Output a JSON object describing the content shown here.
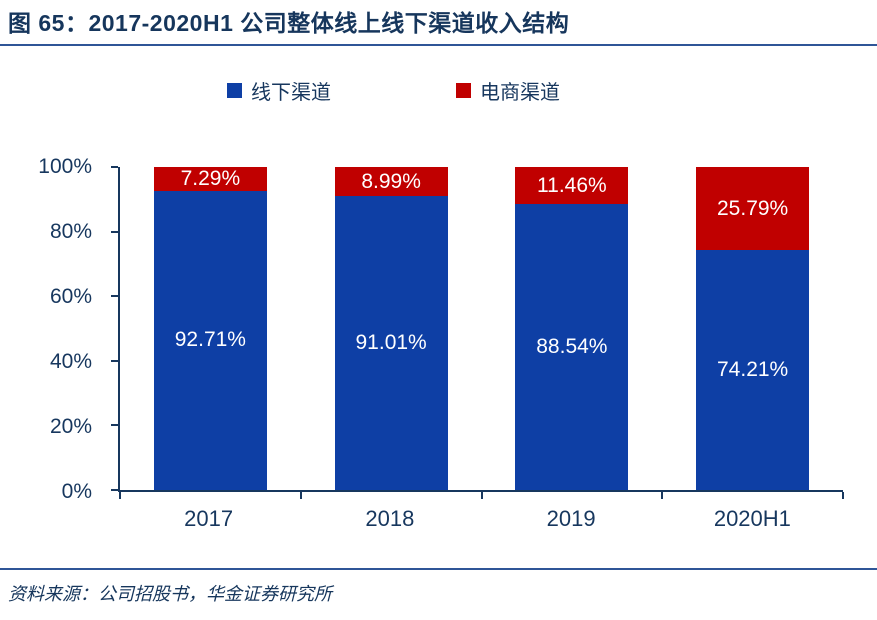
{
  "header": {
    "title": "图 65：2017-2020H1 公司整体线上线下渠道收入结构"
  },
  "chart_data": {
    "type": "bar",
    "stacked": true,
    "stack_unit": "percent",
    "title": "2017-2020H1 公司整体线上线下渠道收入结构",
    "categories": [
      "2017",
      "2018",
      "2019",
      "2020H1"
    ],
    "series": [
      {
        "name": "线下渠道",
        "key": "offline",
        "color": "#0E3FA5",
        "values": [
          92.71,
          91.01,
          88.54,
          74.21
        ]
      },
      {
        "name": "电商渠道",
        "key": "ecommerce",
        "color": "#C00000",
        "values": [
          7.29,
          8.99,
          11.46,
          25.79
        ]
      }
    ],
    "ylim": [
      0,
      100
    ],
    "yticks": [
      "0%",
      "20%",
      "40%",
      "60%",
      "80%",
      "100%"
    ],
    "grid": false,
    "legend_position": "top",
    "value_labels": "inside-white-two-decimals-percent"
  },
  "footer": {
    "source": "资料来源：公司招股书，华金证券研究所"
  },
  "colors": {
    "title": "#16365C",
    "rule": "#2F5597",
    "axis": "#17375E",
    "axis_text": "#17375E",
    "bar_label": "#FFFFFF"
  }
}
